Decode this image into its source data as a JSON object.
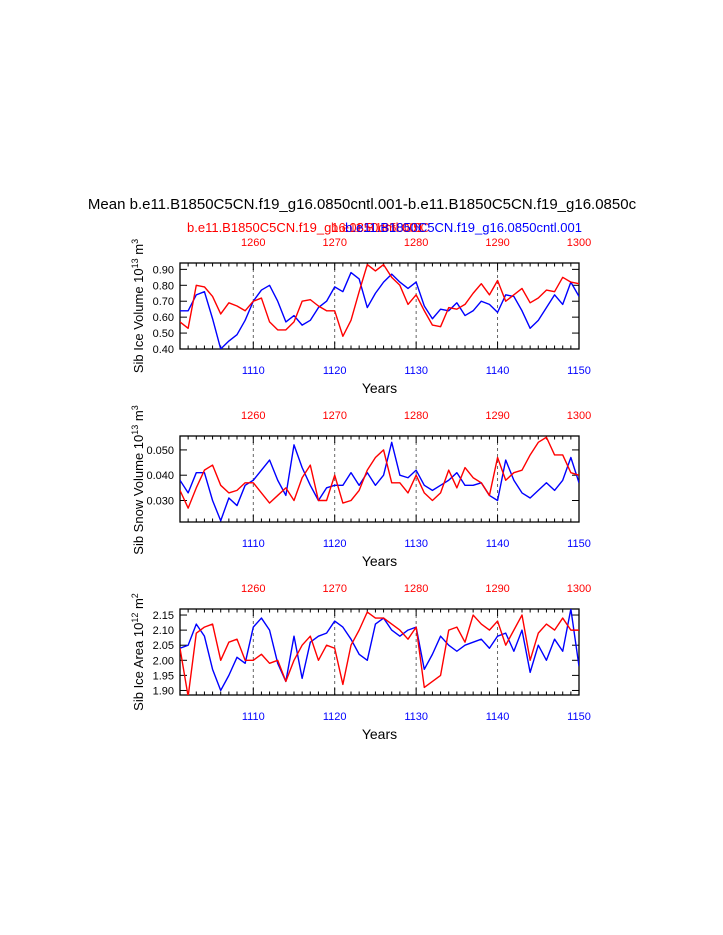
{
  "title": "Mean b.e11.B1850C5CN.f19_g16.0850cntl.001-b.e11.B1850C5CN.f19_g16.0850c",
  "legend": {
    "red_label": "b.e11.B1850C5CN.f19_g16.0850cntl.001",
    "overlap_label": "b.e11.B1850C5C",
    "blue_label": "b.e11.B1850C5CN.f19_g16.0850cntl.001"
  },
  "colors": {
    "red": "#ff0000",
    "blue": "#0000ff",
    "black": "#000000",
    "grid": "#555555"
  },
  "chart_data": [
    {
      "type": "line",
      "ylabel": "Sib Ice Volume 10",
      "ylabel_exp1": "13",
      "ylabel_unit": " m",
      "ylabel_exp2": "3",
      "xlabel": "Years",
      "bottom_axis": {
        "range": [
          1101,
          1150
        ],
        "ticks": [
          "1110",
          "1120",
          "1130",
          "1140",
          "1150"
        ],
        "tick_values": [
          1110,
          1120,
          1130,
          1140,
          1150
        ]
      },
      "top_axis": {
        "range": [
          1251,
          1300
        ],
        "ticks": [
          "1260",
          "1270",
          "1280",
          "1290",
          "1300"
        ],
        "tick_values": [
          1260,
          1270,
          1280,
          1290,
          1300
        ]
      },
      "ylim": [
        0.4,
        0.94
      ],
      "yticks": [
        "0.40",
        "0.50",
        "0.60",
        "0.70",
        "0.80",
        "0.90"
      ],
      "ytick_values": [
        0.4,
        0.5,
        0.6,
        0.7,
        0.8,
        0.9
      ],
      "gridlines_x_years": [
        1110,
        1120,
        1130,
        1140
      ],
      "series": [
        {
          "name": "blue",
          "axis": "bottom",
          "x_start": 1101,
          "values": [
            0.64,
            0.64,
            0.74,
            0.76,
            0.59,
            0.4,
            0.45,
            0.49,
            0.58,
            0.7,
            0.77,
            0.8,
            0.7,
            0.57,
            0.61,
            0.55,
            0.58,
            0.66,
            0.7,
            0.79,
            0.76,
            0.88,
            0.84,
            0.66,
            0.75,
            0.82,
            0.87,
            0.82,
            0.78,
            0.82,
            0.67,
            0.59,
            0.65,
            0.64,
            0.69,
            0.61,
            0.64,
            0.7,
            0.68,
            0.63,
            0.74,
            0.73,
            0.64,
            0.53,
            0.58,
            0.66,
            0.74,
            0.68,
            0.82,
            0.73
          ]
        },
        {
          "name": "red",
          "axis": "top",
          "x_start": 1251,
          "values": [
            0.57,
            0.53,
            0.8,
            0.79,
            0.73,
            0.62,
            0.69,
            0.67,
            0.64,
            0.7,
            0.72,
            0.57,
            0.52,
            0.52,
            0.57,
            0.7,
            0.71,
            0.67,
            0.64,
            0.64,
            0.48,
            0.58,
            0.76,
            0.93,
            0.89,
            0.93,
            0.85,
            0.8,
            0.68,
            0.74,
            0.64,
            0.55,
            0.54,
            0.66,
            0.65,
            0.68,
            0.75,
            0.81,
            0.74,
            0.83,
            0.7,
            0.74,
            0.78,
            0.69,
            0.72,
            0.77,
            0.76,
            0.85,
            0.82,
            0.81
          ]
        }
      ]
    },
    {
      "type": "line",
      "ylabel": "Sib Snow Volume 10",
      "ylabel_exp1": "13",
      "ylabel_unit": " m",
      "ylabel_exp2": "3",
      "xlabel": "Years",
      "bottom_axis": {
        "range": [
          1101,
          1150
        ],
        "ticks": [
          "1110",
          "1120",
          "1130",
          "1140",
          "1150"
        ],
        "tick_values": [
          1110,
          1120,
          1130,
          1140,
          1150
        ]
      },
      "top_axis": {
        "range": [
          1251,
          1300
        ],
        "ticks": [
          "1260",
          "1270",
          "1280",
          "1290",
          "1300"
        ],
        "tick_values": [
          1260,
          1270,
          1280,
          1290,
          1300
        ]
      },
      "ylim": [
        0.0215,
        0.0555
      ],
      "yticks": [
        "0.030",
        "0.040",
        "0.050"
      ],
      "ytick_values": [
        0.03,
        0.04,
        0.05
      ],
      "gridlines_x_years": [
        1110,
        1120,
        1130,
        1140
      ],
      "series": [
        {
          "name": "blue",
          "axis": "bottom",
          "x_start": 1101,
          "values": [
            0.038,
            0.033,
            0.041,
            0.041,
            0.03,
            0.022,
            0.031,
            0.028,
            0.036,
            0.038,
            0.042,
            0.046,
            0.038,
            0.032,
            0.052,
            0.043,
            0.036,
            0.03,
            0.035,
            0.036,
            0.036,
            0.041,
            0.036,
            0.041,
            0.036,
            0.04,
            0.053,
            0.04,
            0.039,
            0.042,
            0.036,
            0.034,
            0.036,
            0.038,
            0.041,
            0.036,
            0.036,
            0.037,
            0.032,
            0.03,
            0.046,
            0.038,
            0.033,
            0.031,
            0.034,
            0.037,
            0.034,
            0.038,
            0.047,
            0.037
          ]
        },
        {
          "name": "red",
          "axis": "top",
          "x_start": 1251,
          "values": [
            0.034,
            0.027,
            0.035,
            0.042,
            0.044,
            0.036,
            0.033,
            0.034,
            0.037,
            0.037,
            0.033,
            0.029,
            0.032,
            0.035,
            0.03,
            0.039,
            0.044,
            0.03,
            0.03,
            0.04,
            0.029,
            0.03,
            0.034,
            0.042,
            0.047,
            0.05,
            0.037,
            0.037,
            0.033,
            0.04,
            0.033,
            0.03,
            0.033,
            0.042,
            0.035,
            0.043,
            0.039,
            0.037,
            0.032,
            0.047,
            0.038,
            0.041,
            0.042,
            0.048,
            0.053,
            0.055,
            0.048,
            0.048,
            0.041,
            0.04
          ]
        }
      ]
    },
    {
      "type": "line",
      "ylabel": "Sib Ice Area 10",
      "ylabel_exp1": "12",
      "ylabel_unit": " m",
      "ylabel_exp2": "2",
      "xlabel": "Years",
      "bottom_axis": {
        "range": [
          1101,
          1150
        ],
        "ticks": [
          "1110",
          "1120",
          "1130",
          "1140",
          "1150"
        ],
        "tick_values": [
          1110,
          1120,
          1130,
          1140,
          1150
        ]
      },
      "top_axis": {
        "range": [
          1251,
          1300
        ],
        "ticks": [
          "1260",
          "1270",
          "1280",
          "1290",
          "1300"
        ],
        "tick_values": [
          1260,
          1270,
          1280,
          1290,
          1300
        ]
      },
      "ylim": [
        1.885,
        2.17
      ],
      "yticks": [
        "1.90",
        "1.95",
        "2.00",
        "2.05",
        "2.10",
        "2.15"
      ],
      "ytick_values": [
        1.9,
        1.95,
        2.0,
        2.05,
        2.1,
        2.15
      ],
      "gridlines_x_years": [
        1110,
        1120,
        1130,
        1140
      ],
      "series": [
        {
          "name": "blue",
          "axis": "bottom",
          "x_start": 1101,
          "values": [
            2.04,
            2.05,
            2.12,
            2.08,
            1.97,
            1.9,
            1.95,
            2.01,
            1.99,
            2.11,
            2.14,
            2.1,
            1.99,
            1.93,
            2.08,
            1.94,
            2.06,
            2.08,
            2.09,
            2.13,
            2.11,
            2.07,
            2.02,
            2.0,
            2.12,
            2.14,
            2.1,
            2.08,
            2.1,
            2.11,
            1.97,
            2.02,
            2.08,
            2.05,
            2.03,
            2.05,
            2.06,
            2.07,
            2.04,
            2.08,
            2.09,
            2.03,
            2.1,
            1.96,
            2.05,
            2.0,
            2.07,
            2.03,
            2.17,
            1.98
          ]
        },
        {
          "name": "red",
          "axis": "top",
          "x_start": 1251,
          "values": [
            2.04,
            1.88,
            2.09,
            2.11,
            2.12,
            2.0,
            2.06,
            2.07,
            2.0,
            2.0,
            2.02,
            1.99,
            2.0,
            1.93,
            2.0,
            2.05,
            2.08,
            2.0,
            2.05,
            2.04,
            1.92,
            2.05,
            2.1,
            2.16,
            2.14,
            2.14,
            2.12,
            2.1,
            2.07,
            2.11,
            1.91,
            1.93,
            1.95,
            2.1,
            2.11,
            2.06,
            2.15,
            2.12,
            2.1,
            2.13,
            2.05,
            2.1,
            2.15,
            2.0,
            2.09,
            2.12,
            2.1,
            2.14,
            2.1,
            2.1
          ]
        }
      ]
    }
  ]
}
